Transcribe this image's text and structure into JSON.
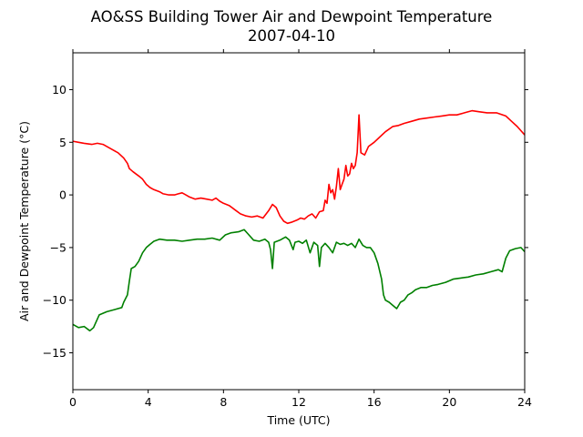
{
  "chart_data": {
    "type": "line",
    "title": "AO&SS Building Tower Air and Dewpoint Temperature",
    "subtitle": "2007-04-10",
    "xlabel": "Time (UTC)",
    "ylabel": "Air and Dewpoint Temperature (°C)",
    "xlim": [
      0,
      24
    ],
    "ylim": [
      -18.5,
      13.5
    ],
    "xticks": [
      0,
      4,
      8,
      12,
      16,
      20,
      24
    ],
    "yticks": [
      -15,
      -10,
      -5,
      0,
      5,
      10
    ],
    "grid": false,
    "legend": "none",
    "series": [
      {
        "color": "#ff0000",
        "points": [
          [
            0,
            5.1
          ],
          [
            0.3,
            5.0
          ],
          [
            0.6,
            4.9
          ],
          [
            1.0,
            4.8
          ],
          [
            1.3,
            4.9
          ],
          [
            1.6,
            4.8
          ],
          [
            2.0,
            4.4
          ],
          [
            2.4,
            4.0
          ],
          [
            2.7,
            3.5
          ],
          [
            2.9,
            3.0
          ],
          [
            3.0,
            2.5
          ],
          [
            3.2,
            2.2
          ],
          [
            3.5,
            1.8
          ],
          [
            3.7,
            1.5
          ],
          [
            3.9,
            1.0
          ],
          [
            4.1,
            0.7
          ],
          [
            4.3,
            0.5
          ],
          [
            4.6,
            0.3
          ],
          [
            4.8,
            0.1
          ],
          [
            5.1,
            0.0
          ],
          [
            5.4,
            0.0
          ],
          [
            5.6,
            0.1
          ],
          [
            5.8,
            0.2
          ],
          [
            6.0,
            0.0
          ],
          [
            6.2,
            -0.2
          ],
          [
            6.5,
            -0.4
          ],
          [
            6.8,
            -0.3
          ],
          [
            7.1,
            -0.4
          ],
          [
            7.4,
            -0.5
          ],
          [
            7.6,
            -0.3
          ],
          [
            7.8,
            -0.6
          ],
          [
            8.0,
            -0.8
          ],
          [
            8.3,
            -1.0
          ],
          [
            8.6,
            -1.4
          ],
          [
            8.9,
            -1.8
          ],
          [
            9.2,
            -2.0
          ],
          [
            9.5,
            -2.1
          ],
          [
            9.8,
            -2.0
          ],
          [
            10.1,
            -2.2
          ],
          [
            10.4,
            -1.5
          ],
          [
            10.6,
            -0.9
          ],
          [
            10.8,
            -1.2
          ],
          [
            11.0,
            -2.0
          ],
          [
            11.2,
            -2.5
          ],
          [
            11.4,
            -2.7
          ],
          [
            11.6,
            -2.6
          ],
          [
            11.9,
            -2.4
          ],
          [
            12.1,
            -2.2
          ],
          [
            12.3,
            -2.3
          ],
          [
            12.5,
            -2.0
          ],
          [
            12.7,
            -1.8
          ],
          [
            12.9,
            -2.2
          ],
          [
            13.1,
            -1.6
          ],
          [
            13.3,
            -1.5
          ],
          [
            13.4,
            -0.5
          ],
          [
            13.5,
            -0.8
          ],
          [
            13.6,
            1.0
          ],
          [
            13.7,
            0.2
          ],
          [
            13.8,
            0.5
          ],
          [
            13.9,
            -0.4
          ],
          [
            14.0,
            0.8
          ],
          [
            14.1,
            2.5
          ],
          [
            14.2,
            0.5
          ],
          [
            14.3,
            1.0
          ],
          [
            14.4,
            1.5
          ],
          [
            14.5,
            2.8
          ],
          [
            14.6,
            1.8
          ],
          [
            14.7,
            2.0
          ],
          [
            14.8,
            3.0
          ],
          [
            14.9,
            2.5
          ],
          [
            15.0,
            2.8
          ],
          [
            15.1,
            4.0
          ],
          [
            15.2,
            7.6
          ],
          [
            15.3,
            4.0
          ],
          [
            15.5,
            3.8
          ],
          [
            15.7,
            4.6
          ],
          [
            16.0,
            5.0
          ],
          [
            16.3,
            5.5
          ],
          [
            16.6,
            6.0
          ],
          [
            17.0,
            6.5
          ],
          [
            17.3,
            6.6
          ],
          [
            17.6,
            6.8
          ],
          [
            18.0,
            7.0
          ],
          [
            18.4,
            7.2
          ],
          [
            18.8,
            7.3
          ],
          [
            19.2,
            7.4
          ],
          [
            19.6,
            7.5
          ],
          [
            20.0,
            7.6
          ],
          [
            20.4,
            7.6
          ],
          [
            20.8,
            7.8
          ],
          [
            21.2,
            8.0
          ],
          [
            21.6,
            7.9
          ],
          [
            22.0,
            7.8
          ],
          [
            22.5,
            7.8
          ],
          [
            23.0,
            7.5
          ],
          [
            23.3,
            7.0
          ],
          [
            23.6,
            6.5
          ],
          [
            24.0,
            5.7
          ]
        ]
      },
      {
        "color": "#008000",
        "points": [
          [
            0,
            -12.3
          ],
          [
            0.3,
            -12.6
          ],
          [
            0.6,
            -12.5
          ],
          [
            0.9,
            -12.9
          ],
          [
            1.1,
            -12.6
          ],
          [
            1.4,
            -11.4
          ],
          [
            1.8,
            -11.1
          ],
          [
            2.2,
            -10.9
          ],
          [
            2.6,
            -10.7
          ],
          [
            2.7,
            -10.2
          ],
          [
            2.9,
            -9.5
          ],
          [
            3.0,
            -8.2
          ],
          [
            3.1,
            -7.0
          ],
          [
            3.3,
            -6.8
          ],
          [
            3.5,
            -6.3
          ],
          [
            3.7,
            -5.5
          ],
          [
            3.9,
            -5.0
          ],
          [
            4.1,
            -4.7
          ],
          [
            4.3,
            -4.4
          ],
          [
            4.6,
            -4.2
          ],
          [
            5.0,
            -4.3
          ],
          [
            5.4,
            -4.3
          ],
          [
            5.8,
            -4.4
          ],
          [
            6.2,
            -4.3
          ],
          [
            6.6,
            -4.2
          ],
          [
            7.0,
            -4.2
          ],
          [
            7.4,
            -4.1
          ],
          [
            7.8,
            -4.3
          ],
          [
            8.1,
            -3.8
          ],
          [
            8.4,
            -3.6
          ],
          [
            8.8,
            -3.5
          ],
          [
            9.1,
            -3.3
          ],
          [
            9.3,
            -3.7
          ],
          [
            9.6,
            -4.3
          ],
          [
            9.9,
            -4.4
          ],
          [
            10.2,
            -4.2
          ],
          [
            10.4,
            -4.5
          ],
          [
            10.5,
            -5.2
          ],
          [
            10.6,
            -7.0
          ],
          [
            10.7,
            -4.5
          ],
          [
            11.0,
            -4.3
          ],
          [
            11.3,
            -4.0
          ],
          [
            11.5,
            -4.3
          ],
          [
            11.7,
            -5.2
          ],
          [
            11.8,
            -4.5
          ],
          [
            12.0,
            -4.4
          ],
          [
            12.2,
            -4.6
          ],
          [
            12.4,
            -4.3
          ],
          [
            12.6,
            -5.5
          ],
          [
            12.8,
            -4.5
          ],
          [
            13.0,
            -4.8
          ],
          [
            13.1,
            -6.8
          ],
          [
            13.2,
            -5.0
          ],
          [
            13.4,
            -4.6
          ],
          [
            13.6,
            -5.0
          ],
          [
            13.8,
            -5.5
          ],
          [
            14.0,
            -4.5
          ],
          [
            14.2,
            -4.7
          ],
          [
            14.4,
            -4.6
          ],
          [
            14.6,
            -4.8
          ],
          [
            14.8,
            -4.6
          ],
          [
            15.0,
            -5.0
          ],
          [
            15.2,
            -4.2
          ],
          [
            15.4,
            -4.8
          ],
          [
            15.6,
            -5.0
          ],
          [
            15.8,
            -5.0
          ],
          [
            16.0,
            -5.5
          ],
          [
            16.2,
            -6.5
          ],
          [
            16.4,
            -8.0
          ],
          [
            16.5,
            -9.5
          ],
          [
            16.6,
            -10.0
          ],
          [
            16.8,
            -10.2
          ],
          [
            17.0,
            -10.5
          ],
          [
            17.2,
            -10.8
          ],
          [
            17.4,
            -10.2
          ],
          [
            17.6,
            -10.0
          ],
          [
            17.8,
            -9.5
          ],
          [
            18.0,
            -9.3
          ],
          [
            18.2,
            -9.0
          ],
          [
            18.5,
            -8.8
          ],
          [
            18.8,
            -8.8
          ],
          [
            19.1,
            -8.6
          ],
          [
            19.4,
            -8.5
          ],
          [
            19.8,
            -8.3
          ],
          [
            20.2,
            -8.0
          ],
          [
            20.6,
            -7.9
          ],
          [
            21.0,
            -7.8
          ],
          [
            21.4,
            -7.6
          ],
          [
            21.8,
            -7.5
          ],
          [
            22.2,
            -7.3
          ],
          [
            22.6,
            -7.1
          ],
          [
            22.8,
            -7.3
          ],
          [
            23.0,
            -6.0
          ],
          [
            23.2,
            -5.3
          ],
          [
            23.5,
            -5.1
          ],
          [
            23.8,
            -5.0
          ],
          [
            24.0,
            -5.4
          ]
        ]
      }
    ]
  }
}
